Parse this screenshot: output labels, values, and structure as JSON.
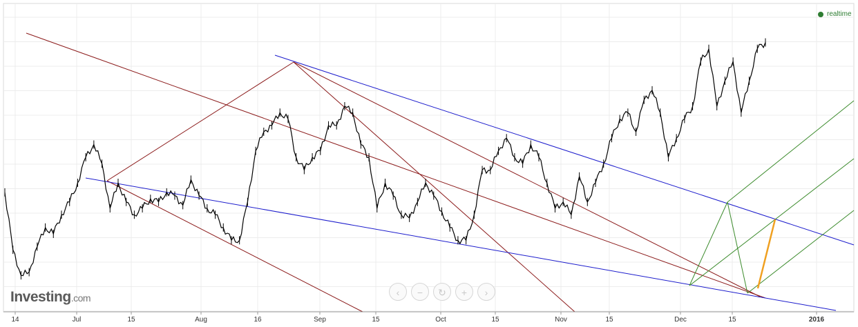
{
  "header": {
    "realtime_label": "realtime"
  },
  "logo": {
    "name": "Investing",
    "suffix": ".com"
  },
  "controls": [
    {
      "name": "scroll-left-button",
      "icon": "chevron-left-icon",
      "glyph": "‹"
    },
    {
      "name": "zoom-out-button",
      "icon": "minus-icon",
      "glyph": "−"
    },
    {
      "name": "reset-button",
      "icon": "refresh-icon",
      "glyph": "↻"
    },
    {
      "name": "zoom-in-button",
      "icon": "plus-icon",
      "glyph": "+"
    },
    {
      "name": "scroll-right-button",
      "icon": "chevron-right-icon",
      "glyph": "›"
    }
  ],
  "colors": {
    "price": "#000000",
    "red_lines": "#8b1a1a",
    "blue_lines": "#1a1acc",
    "green_lines": "#3a8a2a",
    "orange_line": "#f0a020",
    "realtime": "#2e7d32"
  },
  "chart_data": {
    "type": "line",
    "x_tick_labels": [
      "14",
      "Jul",
      "15",
      "Aug",
      "16",
      "Sep",
      "15",
      "Oct",
      "15",
      "Nov",
      "15",
      "Dec",
      "15",
      "2016"
    ],
    "grid": true,
    "legend": "none",
    "series": [
      {
        "values": [
          185,
          95,
          55,
          60,
          100,
          130,
          120,
          150,
          170,
          200,
          240,
          260,
          230,
          160,
          200,
          170,
          150,
          160,
          175,
          170,
          185,
          180,
          165,
          205,
          180,
          160,
          150,
          130,
          110,
          110,
          170,
          250,
          280,
          290,
          310,
          300,
          240,
          220,
          240,
          250,
          290,
          290,
          320,
          310,
          260,
          240,
          160,
          200,
          180,
          150,
          145,
          170,
          200,
          180,
          155,
          130,
          110,
          110,
          150,
          220,
          220,
          250,
          270,
          240,
          230,
          260,
          240,
          200,
          160,
          170,
          150,
          210,
          170,
          200,
          230,
          270,
          300,
          310,
          280,
          330,
          345,
          310,
          240,
          270,
          300,
          320,
          390,
          410,
          320,
          360,
          390,
          310,
          360,
          410,
          420
        ]
      }
    ]
  }
}
